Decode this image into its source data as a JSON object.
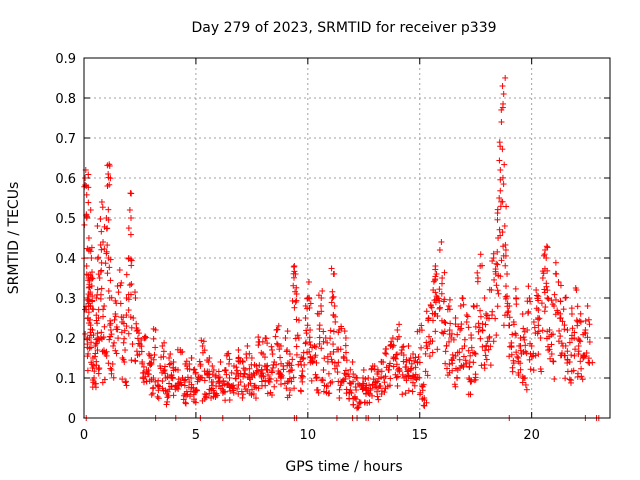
{
  "chart_data": {
    "type": "scatter",
    "title": "Day 279 of 2023, SRMTID for receiver p339",
    "xlabel": "GPS time / hours",
    "ylabel": "SRMTID / TECUs",
    "xlim": [
      0,
      23.5
    ],
    "ylim": [
      0,
      0.9
    ],
    "x_ticks": [
      0,
      5,
      10,
      15,
      20
    ],
    "y_ticks": [
      0,
      0.1,
      0.2,
      0.3,
      0.4,
      0.5,
      0.6,
      0.7,
      0.8,
      0.9
    ],
    "x_tick_labels": [
      "0",
      "5",
      "10",
      "15",
      "20"
    ],
    "y_tick_labels": [
      "0",
      "0.1",
      "0.2",
      "0.3",
      "0.4",
      "0.5",
      "0.6",
      "0.7",
      "0.8",
      "0.9"
    ],
    "grid": true,
    "marker": "+",
    "series": [
      {
        "name": "SRMTID",
        "color": "#ff0000",
        "points": [
          [
            0.05,
            0.6
          ],
          [
            0.08,
            0.62
          ],
          [
            0.1,
            0.58
          ],
          [
            0.12,
            0.38
          ],
          [
            0.15,
            0.3
          ],
          [
            0.18,
            0.25
          ],
          [
            0.2,
            0.35
          ],
          [
            0.22,
            0.45
          ],
          [
            0.25,
            0.2
          ],
          [
            0.28,
            0.28
          ],
          [
            0.3,
            0.52
          ],
          [
            0.33,
            0.4
          ],
          [
            0.35,
            0.33
          ],
          [
            0.38,
            0.22
          ],
          [
            0.4,
            0.15
          ],
          [
            0.45,
            0.1
          ],
          [
            0.5,
            0.18
          ],
          [
            0.55,
            0.3
          ],
          [
            0.6,
            0.48
          ],
          [
            0.65,
            0.25
          ],
          [
            0.7,
            0.35
          ],
          [
            0.75,
            0.2
          ],
          [
            0.8,
            0.54
          ],
          [
            0.85,
            0.44
          ],
          [
            0.9,
            0.28
          ],
          [
            0.95,
            0.16
          ],
          [
            1.0,
            0.5
          ],
          [
            1.05,
            0.58
          ],
          [
            1.08,
            0.61
          ],
          [
            1.1,
            0.4
          ],
          [
            1.15,
            0.3
          ],
          [
            1.2,
            0.22
          ],
          [
            1.3,
            0.18
          ],
          [
            1.4,
            0.26
          ],
          [
            1.5,
            0.33
          ],
          [
            1.6,
            0.37
          ],
          [
            1.7,
            0.24
          ],
          [
            1.8,
            0.14
          ],
          [
            1.9,
            0.3
          ],
          [
            2.0,
            0.4
          ],
          [
            2.05,
            0.52
          ],
          [
            2.1,
            0.5
          ],
          [
            2.2,
            0.25
          ],
          [
            2.3,
            0.3
          ],
          [
            2.4,
            0.22
          ],
          [
            2.5,
            0.18
          ],
          [
            2.6,
            0.14
          ],
          [
            2.7,
            0.2
          ],
          [
            2.8,
            0.12
          ],
          [
            2.9,
            0.16
          ],
          [
            3.0,
            0.15
          ],
          [
            3.1,
            0.1
          ],
          [
            3.2,
            0.22
          ],
          [
            3.3,
            0.08
          ],
          [
            3.4,
            0.13
          ],
          [
            3.5,
            0.18
          ],
          [
            3.6,
            0.12
          ],
          [
            3.7,
            0.06
          ],
          [
            3.8,
            0.15
          ],
          [
            3.9,
            0.1
          ],
          [
            4.0,
            0.14
          ],
          [
            4.1,
            0.08
          ],
          [
            4.2,
            0.12
          ],
          [
            4.3,
            0.17
          ],
          [
            4.4,
            0.1
          ],
          [
            4.5,
            0.06
          ],
          [
            4.6,
            0.13
          ],
          [
            4.7,
            0.09
          ],
          [
            4.8,
            0.15
          ],
          [
            4.9,
            0.12
          ],
          [
            5.0,
            0.07
          ],
          [
            5.1,
            0.1
          ],
          [
            5.2,
            0.13
          ],
          [
            5.3,
            0.18
          ],
          [
            5.4,
            0.06
          ],
          [
            5.5,
            0.11
          ],
          [
            5.6,
            0.15
          ],
          [
            5.7,
            0.09
          ],
          [
            5.8,
            0.12
          ],
          [
            5.9,
            0.08
          ],
          [
            6.0,
            0.1
          ],
          [
            6.1,
            0.14
          ],
          [
            6.2,
            0.07
          ],
          [
            6.3,
            0.12
          ],
          [
            6.4,
            0.16
          ],
          [
            6.5,
            0.1
          ],
          [
            6.6,
            0.08
          ],
          [
            6.7,
            0.13
          ],
          [
            6.8,
            0.11
          ],
          [
            6.9,
            0.17
          ],
          [
            7.0,
            0.09
          ],
          [
            7.1,
            0.14
          ],
          [
            7.2,
            0.12
          ],
          [
            7.3,
            0.18
          ],
          [
            7.4,
            0.1
          ],
          [
            7.5,
            0.15
          ],
          [
            7.6,
            0.08
          ],
          [
            7.7,
            0.13
          ],
          [
            7.8,
            0.19
          ],
          [
            7.9,
            0.11
          ],
          [
            8.0,
            0.16
          ],
          [
            8.1,
            0.2
          ],
          [
            8.2,
            0.12
          ],
          [
            8.3,
            0.09
          ],
          [
            8.4,
            0.17
          ],
          [
            8.5,
            0.14
          ],
          [
            8.6,
            0.22
          ],
          [
            8.7,
            0.11
          ],
          [
            8.8,
            0.18
          ],
          [
            8.9,
            0.13
          ],
          [
            9.0,
            0.2
          ],
          [
            9.1,
            0.09
          ],
          [
            9.2,
            0.16
          ],
          [
            9.3,
            0.12
          ],
          [
            9.4,
            0.38
          ],
          [
            9.45,
            0.36
          ],
          [
            9.5,
            0.31
          ],
          [
            9.6,
            0.2
          ],
          [
            9.7,
            0.1
          ],
          [
            9.8,
            0.15
          ],
          [
            9.9,
            0.25
          ],
          [
            10.0,
            0.3
          ],
          [
            10.05,
            0.34
          ],
          [
            10.1,
            0.22
          ],
          [
            10.2,
            0.14
          ],
          [
            10.3,
            0.18
          ],
          [
            10.4,
            0.1
          ],
          [
            10.5,
            0.26
          ],
          [
            10.6,
            0.3
          ],
          [
            10.7,
            0.12
          ],
          [
            10.8,
            0.2
          ],
          [
            10.9,
            0.08
          ],
          [
            11.0,
            0.16
          ],
          [
            11.1,
            0.3
          ],
          [
            11.15,
            0.36
          ],
          [
            11.2,
            0.28
          ],
          [
            11.3,
            0.13
          ],
          [
            11.4,
            0.22
          ],
          [
            11.5,
            0.09
          ],
          [
            11.6,
            0.15
          ],
          [
            11.7,
            0.2
          ],
          [
            11.8,
            0.11
          ],
          [
            11.9,
            0.07
          ],
          [
            12.0,
            0.14
          ],
          [
            12.1,
            0.05
          ],
          [
            12.2,
            0.1
          ],
          [
            12.3,
            0.04
          ],
          [
            12.4,
            0.08
          ],
          [
            12.5,
            0.12
          ],
          [
            12.6,
            0.06
          ],
          [
            12.7,
            0.1
          ],
          [
            12.8,
            0.07
          ],
          [
            12.9,
            0.13
          ],
          [
            13.0,
            0.09
          ],
          [
            13.1,
            0.11
          ],
          [
            13.2,
            0.08
          ],
          [
            13.3,
            0.14
          ],
          [
            13.4,
            0.1
          ],
          [
            13.5,
            0.16
          ],
          [
            13.6,
            0.12
          ],
          [
            13.7,
            0.18
          ],
          [
            13.8,
            0.2
          ],
          [
            13.9,
            0.15
          ],
          [
            14.0,
            0.22
          ],
          [
            14.1,
            0.12
          ],
          [
            14.2,
            0.17
          ],
          [
            14.3,
            0.1
          ],
          [
            14.4,
            0.14
          ],
          [
            14.5,
            0.18
          ],
          [
            14.6,
            0.12
          ],
          [
            14.7,
            0.16
          ],
          [
            14.8,
            0.1
          ],
          [
            14.9,
            0.14
          ],
          [
            15.0,
            0.22
          ],
          [
            15.1,
            0.08
          ],
          [
            15.2,
            0.05
          ],
          [
            15.3,
            0.18
          ],
          [
            15.4,
            0.25
          ],
          [
            15.5,
            0.28
          ],
          [
            15.6,
            0.32
          ],
          [
            15.7,
            0.38
          ],
          [
            15.75,
            0.36
          ],
          [
            15.8,
            0.3
          ],
          [
            15.9,
            0.42
          ],
          [
            16.0,
            0.35
          ],
          [
            16.1,
            0.24
          ],
          [
            16.2,
            0.18
          ],
          [
            16.3,
            0.28
          ],
          [
            16.4,
            0.2
          ],
          [
            16.5,
            0.15
          ],
          [
            16.6,
            0.25
          ],
          [
            16.7,
            0.12
          ],
          [
            16.8,
            0.22
          ],
          [
            16.9,
            0.3
          ],
          [
            17.0,
            0.18
          ],
          [
            17.1,
            0.24
          ],
          [
            17.2,
            0.1
          ],
          [
            17.3,
            0.2
          ],
          [
            17.4,
            0.28
          ],
          [
            17.5,
            0.16
          ],
          [
            17.6,
            0.35
          ],
          [
            17.7,
            0.38
          ],
          [
            17.8,
            0.22
          ],
          [
            17.9,
            0.3
          ],
          [
            18.0,
            0.25
          ],
          [
            18.1,
            0.2
          ],
          [
            18.2,
            0.32
          ],
          [
            18.3,
            0.4
          ],
          [
            18.4,
            0.36
          ],
          [
            18.5,
            0.45
          ],
          [
            18.55,
            0.55
          ],
          [
            18.6,
            0.62
          ],
          [
            18.65,
            0.74
          ],
          [
            18.7,
            0.83
          ],
          [
            18.75,
            0.81
          ],
          [
            18.8,
            0.48
          ],
          [
            18.85,
            0.42
          ],
          [
            18.9,
            0.36
          ],
          [
            19.0,
            0.28
          ],
          [
            19.1,
            0.18
          ],
          [
            19.2,
            0.24
          ],
          [
            19.3,
            0.3
          ],
          [
            19.4,
            0.15
          ],
          [
            19.5,
            0.2
          ],
          [
            19.6,
            0.26
          ],
          [
            19.7,
            0.1
          ],
          [
            19.8,
            0.22
          ],
          [
            19.9,
            0.3
          ],
          [
            20.0,
            0.18
          ],
          [
            20.1,
            0.24
          ],
          [
            20.2,
            0.32
          ],
          [
            20.3,
            0.27
          ],
          [
            20.4,
            0.2
          ],
          [
            20.5,
            0.35
          ],
          [
            20.6,
            0.42
          ],
          [
            20.65,
            0.4
          ],
          [
            20.7,
            0.3
          ],
          [
            20.8,
            0.22
          ],
          [
            20.9,
            0.16
          ],
          [
            21.0,
            0.28
          ],
          [
            21.1,
            0.36
          ],
          [
            21.2,
            0.34
          ],
          [
            21.3,
            0.25
          ],
          [
            21.4,
            0.18
          ],
          [
            21.5,
            0.3
          ],
          [
            21.6,
            0.22
          ],
          [
            21.7,
            0.14
          ],
          [
            21.8,
            0.26
          ],
          [
            21.9,
            0.2
          ],
          [
            22.0,
            0.32
          ],
          [
            22.1,
            0.18
          ],
          [
            22.2,
            0.24
          ],
          [
            22.3,
            0.15
          ],
          [
            22.4,
            0.22
          ],
          [
            22.5,
            0.28
          ],
          [
            22.6,
            0.19
          ]
        ]
      }
    ],
    "zero_marks_x": [
      0.1,
      3.2,
      4.1,
      5.2,
      6.2,
      7.4,
      9.4,
      9.5,
      11.3,
      12.0,
      12.2,
      12.6,
      12.7,
      13.2,
      14.0,
      19.0,
      22.4,
      22.9,
      23.0
    ]
  }
}
